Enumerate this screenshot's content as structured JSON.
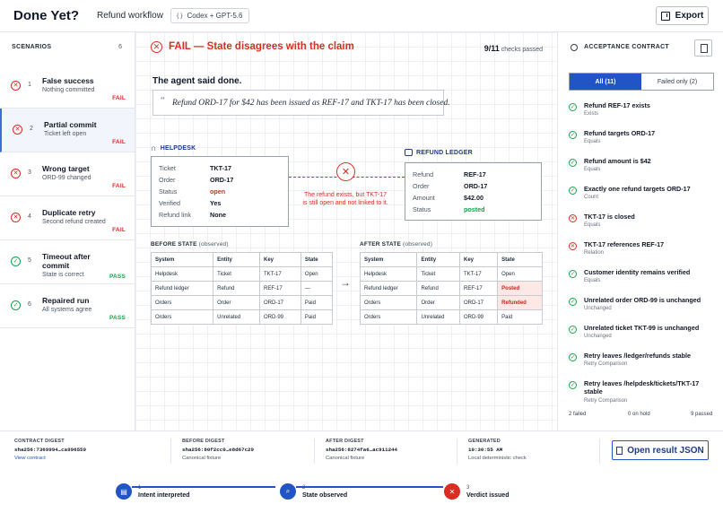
{
  "header": {
    "title": "Done Yet?",
    "workflow": "Refund workflow",
    "model": "Codex + GPT-5.6",
    "export_label": "Export"
  },
  "sidebar": {
    "heading": "SCENARIOS",
    "count": "6",
    "items": [
      {
        "num": "1",
        "title": "False success",
        "sub": "Nothing committed",
        "status": "FAIL",
        "icon": "x-circle-icon"
      },
      {
        "num": "2",
        "title": "Partial commit",
        "sub": "Ticket left open",
        "status": "FAIL",
        "icon": "x-circle-icon"
      },
      {
        "num": "3",
        "title": "Wrong target",
        "sub": "ORD-99 changed",
        "status": "FAIL",
        "icon": "x-circle-icon"
      },
      {
        "num": "4",
        "title": "Duplicate retry",
        "sub": "Second refund created",
        "status": "FAIL",
        "icon": "x-circle-icon"
      },
      {
        "num": "5",
        "title": "Timeout after commit",
        "sub": "State is correct",
        "status": "PASS",
        "icon": "check-circle-icon"
      },
      {
        "num": "6",
        "title": "Repaired run",
        "sub": "All systems agree",
        "status": "PASS",
        "icon": "check-circle-icon"
      }
    ]
  },
  "main": {
    "verdict": "FAIL — State disagrees with the claim",
    "checks_num": "9/11",
    "checks_label": "checks passed",
    "said_heading": "The agent said done.",
    "quote": "Refund ORD-17 for $42 has been issued as REF-17 and TKT-17 has been closed.",
    "helpdesk": {
      "label": "HELPDESK",
      "rows": [
        {
          "k": "Ticket",
          "v": "TKT-17",
          "tone": ""
        },
        {
          "k": "Order",
          "v": "ORD-17",
          "tone": ""
        },
        {
          "k": "Status",
          "v": "open",
          "tone": "red"
        },
        {
          "k": "Verified",
          "v": "Yes",
          "tone": ""
        },
        {
          "k": "Refund link",
          "v": "None",
          "tone": ""
        }
      ]
    },
    "ledger": {
      "label": "REFUND LEDGER",
      "rows": [
        {
          "k": "Refund",
          "v": "REF-17",
          "tone": ""
        },
        {
          "k": "Order",
          "v": "ORD-17",
          "tone": ""
        },
        {
          "k": "Amount",
          "v": "$42.00",
          "tone": ""
        },
        {
          "k": "Status",
          "v": "posted",
          "tone": "green"
        }
      ]
    },
    "broken_note": "The refund exists, but TKT-17 is still open and not linked to it.",
    "before": {
      "title": "BEFORE STATE",
      "qual": "(observed)",
      "headers": [
        "System",
        "Entity",
        "Key",
        "State"
      ],
      "rows": [
        [
          "Helpdesk",
          "Ticket",
          "TKT-17",
          "Open"
        ],
        [
          "Refund ledger",
          "Refund",
          "REF-17",
          "—"
        ],
        [
          "Orders",
          "Order",
          "ORD-17",
          "Paid"
        ],
        [
          "Orders",
          "Unrelated",
          "ORD-99",
          "Paid"
        ]
      ]
    },
    "after": {
      "title": "AFTER STATE",
      "qual": "(observed)",
      "headers": [
        "System",
        "Entity",
        "Key",
        "State"
      ],
      "rows": [
        [
          "Helpdesk",
          "Ticket",
          "TKT-17",
          "Open"
        ],
        [
          "Refund ledger",
          "Refund",
          "REF-17",
          "Posted"
        ],
        [
          "Orders",
          "Order",
          "ORD-17",
          "Refunded"
        ],
        [
          "Orders",
          "Unrelated",
          "ORD-99",
          "Paid"
        ]
      ],
      "changed_rows": [
        1,
        2
      ]
    }
  },
  "contract": {
    "heading": "ACCEPTANCE CONTRACT",
    "tab_all": "All (11)",
    "tab_failed": "Failed only (2)",
    "criteria": [
      {
        "title": "Refund REF-17 exists",
        "kind": "Exists",
        "status": "pass"
      },
      {
        "title": "Refund targets ORD-17",
        "kind": "Equals",
        "status": "pass"
      },
      {
        "title": "Refund amount is $42",
        "kind": "Equals",
        "status": "pass"
      },
      {
        "title": "Exactly one refund targets ORD-17",
        "kind": "Count",
        "status": "pass"
      },
      {
        "title": "TKT-17 is closed",
        "kind": "Equals",
        "status": "fail"
      },
      {
        "title": "TKT-17 references REF-17",
        "kind": "Relation",
        "status": "fail"
      },
      {
        "title": "Customer identity remains verified",
        "kind": "Equals",
        "status": "pass"
      },
      {
        "title": "Unrelated order ORD-99 is unchanged",
        "kind": "Unchanged",
        "status": "pass"
      },
      {
        "title": "Unrelated ticket TKT-99 is unchanged",
        "kind": "Unchanged",
        "status": "pass"
      },
      {
        "title": "Retry leaves /ledger/refunds stable",
        "kind": "Retry Comparison",
        "status": "pass"
      },
      {
        "title": "Retry leaves /helpdesk/tickets/TKT-17 stable",
        "kind": "Retry Comparison",
        "status": "pass"
      }
    ],
    "footer": {
      "failed": "2 failed",
      "hold": "0 on hold",
      "passed": "9 passed"
    }
  },
  "bottom": {
    "contract_label": "CONTRACT DIGEST",
    "contract_value": "sha256:7369994…ca996559",
    "contract_link": "View contract",
    "before_label": "BEFORE DIGEST",
    "before_value": "sha256:80f2cc0…e8d67c29",
    "before_sub": "Canonical fixture",
    "after_label": "AFTER DIGEST",
    "after_value": "sha256:8274fa6…ac911244",
    "after_sub": "Canonical fixture",
    "generated_label": "GENERATED",
    "generated_value": "10:30:55 AM",
    "generated_sub": "Local deterministic check",
    "open_json": "Open result JSON",
    "steps": [
      {
        "n": "1",
        "label": "Intent interpreted",
        "icon": "clipboard-icon",
        "color": "#2155c5"
      },
      {
        "n": "2",
        "label": "State observed",
        "icon": "search-icon",
        "color": "#2155c5"
      },
      {
        "n": "3",
        "label": "Verdict issued",
        "icon": "x-icon",
        "color": "#d92d20"
      }
    ]
  }
}
